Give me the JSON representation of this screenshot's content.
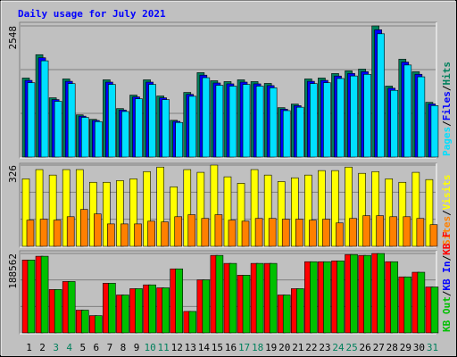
{
  "chart_data": {
    "type": "bar",
    "title": "Daily usage for July 2021",
    "categories": [
      "1",
      "2",
      "3",
      "4",
      "5",
      "6",
      "7",
      "8",
      "9",
      "10",
      "11",
      "12",
      "13",
      "14",
      "15",
      "16",
      "17",
      "18",
      "19",
      "20",
      "21",
      "22",
      "23",
      "24",
      "25",
      "26",
      "27",
      "28",
      "29",
      "30",
      "31"
    ],
    "weekend_color": "#00805c",
    "weekend_days": [
      3,
      4,
      10,
      11,
      17,
      18,
      24,
      25,
      31
    ],
    "legend_separator": "/",
    "panels": [
      {
        "ylim": [
          0,
          2548
        ],
        "yticks": [
          2548
        ],
        "series": [
          {
            "name": "Hits",
            "color": "#00805c",
            "values": [
              1536,
              1989,
              1152,
              1518,
              820,
              733,
              1501,
              942,
              1204,
              1501,
              1187,
              715,
              1256,
              1640,
              1483,
              1466,
              1501,
              1466,
              1431,
              960,
              1030,
              1518,
              1536,
              1623,
              1675,
              1710,
              2548,
              1379,
              1902,
              1658,
              1064
            ]
          },
          {
            "name": "Files",
            "color": "#0000ff",
            "values": [
              1490,
              1929,
              1117,
              1472,
              795,
              711,
              1456,
              914,
              1168,
              1456,
              1151,
              694,
              1218,
              1591,
              1439,
              1422,
              1456,
              1422,
              1388,
              931,
              999,
              1472,
              1490,
              1574,
              1625,
              1659,
              2472,
              1338,
              1845,
              1608,
              1032
            ]
          },
          {
            "name": "Pages",
            "color": "#00e0ff",
            "values": [
              1444,
              1870,
              1083,
              1427,
              771,
              689,
              1411,
              885,
              1132,
              1411,
              1116,
              672,
              1181,
              1542,
              1394,
              1378,
              1411,
              1378,
              1345,
              902,
              968,
              1427,
              1444,
              1526,
              1575,
              1607,
              2395,
              1296,
              1788,
              1559,
              1000
            ]
          }
        ]
      },
      {
        "ylim": [
          0,
          326
        ],
        "yticks": [
          326
        ],
        "series": [
          {
            "name": "Visits",
            "color": "#ffff00",
            "values": [
              271,
              308,
              286,
              308,
              308,
              257,
              257,
              264,
              271,
              300,
              318,
              239,
              308,
              297,
              326,
              279,
              253,
              308,
              286,
              260,
              275,
              286,
              304,
              304,
              318,
              293,
              300,
              271,
              257,
              297,
              268
            ]
          },
          {
            "name": "Sites",
            "color": "#ff8000",
            "values": [
              105,
              109,
              105,
              119,
              148,
              130,
              90,
              90,
              90,
              101,
              98,
              119,
              127,
              112,
              127,
              105,
              101,
              112,
              112,
              109,
              109,
              105,
              109,
              94,
              112,
              123,
              123,
              119,
              119,
              112,
              87
            ]
          }
        ]
      },
      {
        "ylim": [
          0,
          188562
        ],
        "yticks": [
          188562
        ],
        "series": [
          {
            "name": "KB F",
            "color": "#ff0000",
            "values": [
              173000,
              182000,
              103000,
              122000,
              54000,
              41000,
              118000,
              90000,
              105000,
              114000,
              107000,
              152000,
              51000,
              126000,
              184000,
              165000,
              137000,
              165000,
              165000,
              90000,
              105000,
              169000,
              169000,
              171000,
              186000,
              184000,
              188562,
              169000,
              133000,
              144000,
              109000
            ]
          },
          {
            "name": "KB In",
            "color": "#0000ff",
            "values": [
              null,
              null,
              null,
              null,
              null,
              null,
              null,
              null,
              null,
              null,
              null,
              null,
              null,
              null,
              null,
              null,
              null,
              null,
              null,
              null,
              null,
              null,
              null,
              null,
              null,
              null,
              null,
              null,
              null,
              null,
              null
            ]
          },
          {
            "name": "KB Out",
            "color": "#00c000",
            "values": [
              173000,
              182000,
              103000,
              122000,
              54000,
              41000,
              118000,
              90000,
              105000,
              114000,
              107000,
              152000,
              51000,
              126000,
              184000,
              165000,
              137000,
              165000,
              165000,
              90000,
              105000,
              169000,
              169000,
              171000,
              186000,
              184000,
              188562,
              169000,
              133000,
              144000,
              109000
            ]
          }
        ]
      }
    ]
  }
}
